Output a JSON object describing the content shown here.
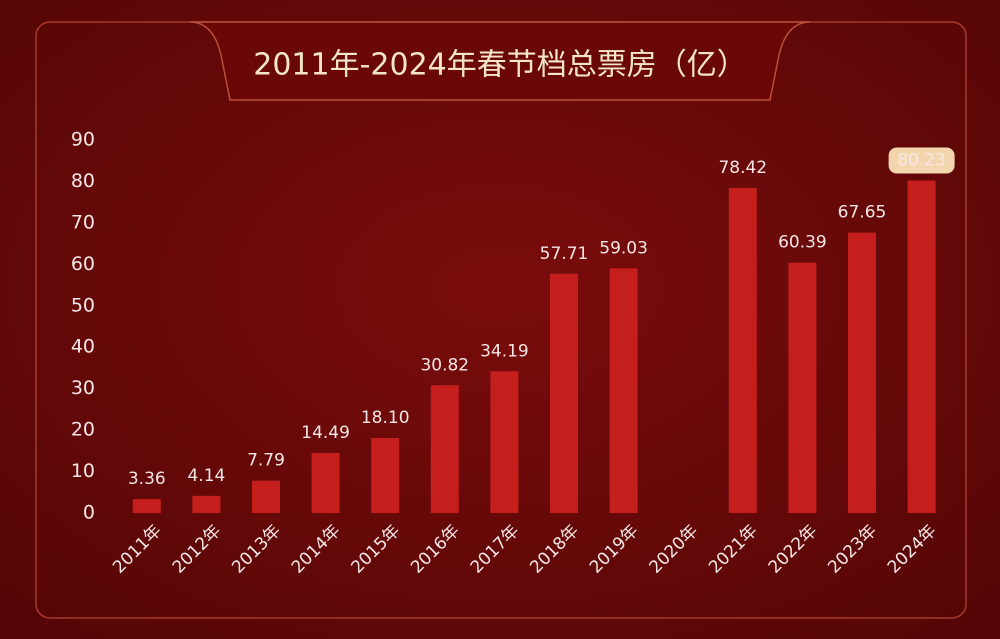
{
  "chart_data": {
    "type": "bar",
    "title": "2011年-2024年春节档总票房（亿）",
    "categories": [
      "2011年",
      "2012年",
      "2013年",
      "2014年",
      "2015年",
      "2016年",
      "2017年",
      "2018年",
      "2019年",
      "2020年",
      "2021年",
      "2022年",
      "2023年",
      "2024年"
    ],
    "values": [
      3.36,
      4.14,
      7.79,
      14.49,
      18.1,
      30.82,
      34.19,
      57.71,
      59.03,
      null,
      78.42,
      60.39,
      67.65,
      80.23
    ],
    "value_labels": [
      "3.36",
      "4.14",
      "7.79",
      "14.49",
      "18.10",
      "30.82",
      "34.19",
      "57.71",
      "59.03",
      null,
      "78.42",
      "60.39",
      "67.65",
      "80.23"
    ],
    "color": "#c41f1c",
    "ylim": [
      0,
      90
    ],
    "yticks": [
      0,
      10,
      20,
      30,
      40,
      50,
      60,
      70,
      80,
      90
    ],
    "grid": false
  }
}
